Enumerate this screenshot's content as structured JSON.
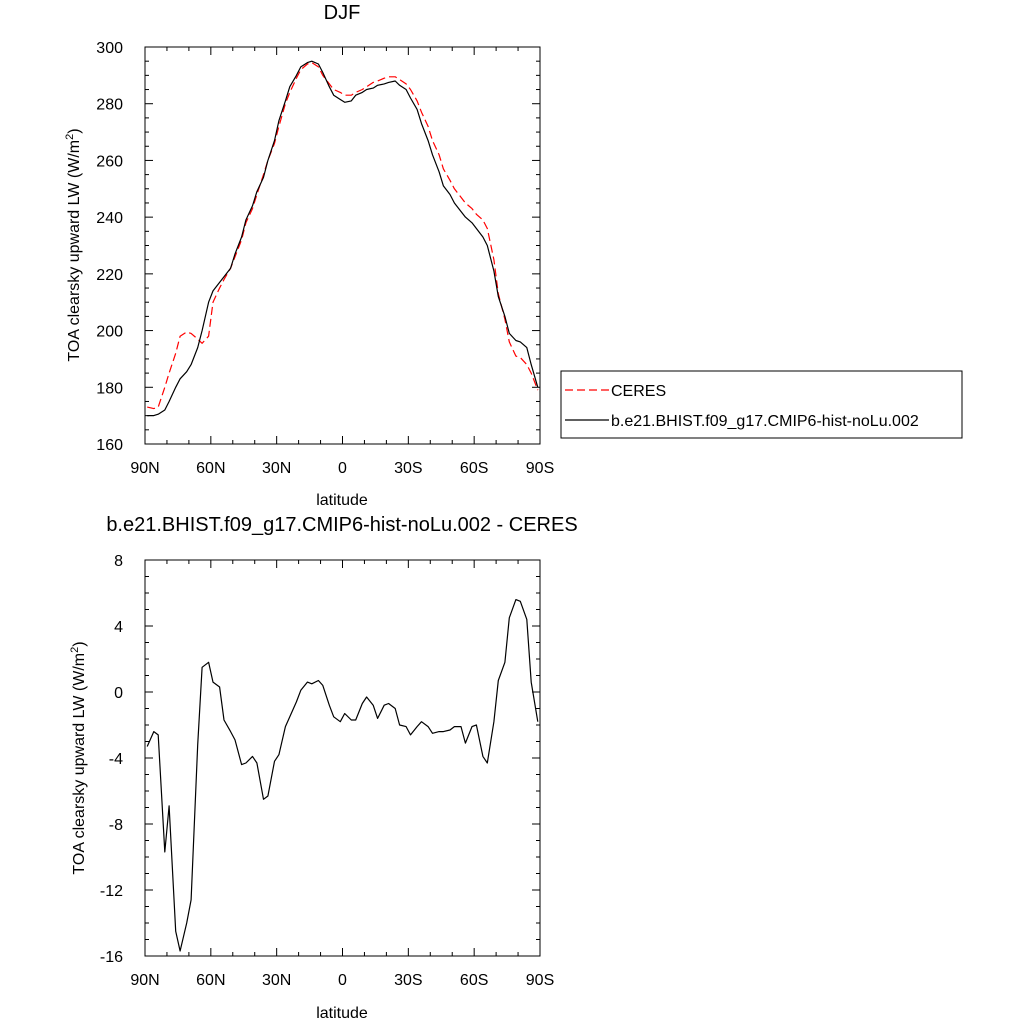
{
  "chart_data": [
    {
      "type": "line",
      "title": "DJF",
      "xlabel": "latitude",
      "ylabel_prefix": "TOA clearsky upward LW (W/m",
      "ylabel_sup": "2",
      "ylabel_suffix": ")",
      "xlim": [
        -90,
        90
      ],
      "ylim": [
        160,
        300
      ],
      "xticks": [
        -90,
        -60,
        -30,
        0,
        30,
        60,
        90
      ],
      "xtick_labels": [
        "90N",
        "60N",
        "30N",
        "0",
        "30S",
        "60S",
        "90S"
      ],
      "yticks": [
        160,
        180,
        200,
        220,
        240,
        260,
        280,
        300
      ],
      "ytick_labels": [
        "160",
        "180",
        "200",
        "220",
        "240",
        "260",
        "280",
        "300"
      ],
      "legend_position": "right",
      "series": [
        {
          "name": "CERES",
          "color": "#ff0000",
          "dash": "dashed",
          "x": [
            -89,
            -86,
            -84,
            -81,
            -79,
            -76,
            -74,
            -71,
            -69,
            -66,
            -64,
            -61,
            -59,
            -56,
            -54,
            -51,
            -49,
            -46,
            -44,
            -41,
            -39,
            -36,
            -34,
            -31,
            -29,
            -26,
            -24,
            -21,
            -19,
            -16,
            -14,
            -11,
            -9,
            -6,
            -4,
            -1,
            1,
            4,
            6,
            9,
            11,
            14,
            16,
            19,
            21,
            24,
            26,
            29,
            31,
            34,
            36,
            39,
            41,
            44,
            46,
            49,
            51,
            54,
            56,
            59,
            61,
            64,
            66,
            69,
            71,
            74,
            76,
            79,
            81,
            84,
            86,
            89
          ],
          "y": [
            173,
            172.5,
            173,
            180,
            185,
            192,
            198,
            199.5,
            199,
            197,
            195.5,
            198,
            210,
            215,
            218,
            222,
            226,
            232,
            238,
            243,
            248,
            255,
            260,
            266,
            272,
            280,
            284,
            289,
            292,
            294,
            294.5,
            293,
            290,
            287,
            285,
            284,
            283,
            283,
            284,
            285,
            286,
            287.5,
            288,
            289,
            289.5,
            289.5,
            288.5,
            287,
            285,
            281,
            277,
            272,
            267,
            262,
            257,
            253,
            250,
            247,
            245,
            243,
            241,
            239,
            236,
            225,
            213,
            204,
            196,
            191,
            190.5,
            188,
            185,
            179
          ]
        },
        {
          "name": "b.e21.BHIST.f09_g17.CMIP6-hist-noLu.002",
          "color": "#000000",
          "dash": "solid",
          "x": [
            -89,
            -86,
            -84,
            -81,
            -79,
            -76,
            -74,
            -71,
            -69,
            -66,
            -64,
            -61,
            -59,
            -56,
            -54,
            -51,
            -49,
            -46,
            -44,
            -41,
            -39,
            -36,
            -34,
            -31,
            -29,
            -26,
            -24,
            -21,
            -19,
            -16,
            -14,
            -11,
            -9,
            -6,
            -4,
            -1,
            1,
            4,
            6,
            9,
            11,
            14,
            16,
            19,
            21,
            24,
            26,
            29,
            31,
            34,
            36,
            39,
            41,
            44,
            46,
            49,
            51,
            54,
            56,
            59,
            61,
            64,
            66,
            69,
            71,
            74,
            76,
            79,
            81,
            84,
            86,
            89
          ],
          "y": [
            170,
            170,
            170.5,
            172,
            175,
            180,
            183,
            185.5,
            188,
            194,
            200,
            210,
            214,
            217,
            219,
            222,
            227,
            233,
            239,
            244,
            249,
            254,
            260,
            267,
            274,
            281,
            286,
            290,
            293,
            294.5,
            295,
            294,
            291,
            286,
            283,
            281.5,
            280.5,
            281,
            283,
            284,
            285,
            285.5,
            286.5,
            287,
            287.5,
            288,
            286.5,
            285,
            282,
            278,
            273,
            267,
            262,
            256,
            251,
            248,
            245,
            242,
            240,
            238,
            236,
            233,
            230,
            221,
            212,
            205,
            199,
            196.5,
            196,
            194,
            188,
            180
          ]
        }
      ]
    },
    {
      "type": "line",
      "title": "b.e21.BHIST.f09_g17.CMIP6-hist-noLu.002 - CERES",
      "xlabel": "latitude",
      "ylabel_prefix": "TOA clearsky upward LW (W/m",
      "ylabel_sup": "2",
      "ylabel_suffix": ")",
      "xlim": [
        -90,
        90
      ],
      "ylim": [
        -16,
        8
      ],
      "xticks": [
        -90,
        -60,
        -30,
        0,
        30,
        60,
        90
      ],
      "xtick_labels": [
        "90N",
        "60N",
        "30N",
        "0",
        "30S",
        "60S",
        "90S"
      ],
      "yticks": [
        -16,
        -12,
        -8,
        -4,
        0,
        4,
        8
      ],
      "ytick_labels": [
        "-16",
        "-12",
        "-8",
        "-4",
        "0",
        "4",
        "8"
      ],
      "series": [
        {
          "color": "#000000",
          "dash": "solid",
          "x": [
            -89,
            -86,
            -84,
            -81,
            -79,
            -76,
            -74,
            -71,
            -69,
            -66,
            -64,
            -61,
            -59,
            -56,
            -54,
            -51,
            -49,
            -46,
            -44,
            -41,
            -39,
            -36,
            -34,
            -31,
            -29,
            -26,
            -24,
            -21,
            -19,
            -16,
            -14,
            -11,
            -9,
            -6,
            -4,
            -1,
            1,
            4,
            6,
            9,
            11,
            14,
            16,
            19,
            21,
            24,
            26,
            29,
            31,
            34,
            36,
            39,
            41,
            44,
            46,
            49,
            51,
            54,
            56,
            59,
            61,
            64,
            66,
            69,
            71,
            74,
            76,
            79,
            81,
            84,
            86,
            89
          ],
          "y": [
            -3.3,
            -2.4,
            -2.6,
            -9.7,
            -6.9,
            -14.5,
            -15.7,
            -14,
            -12.6,
            -3.2,
            1.5,
            1.8,
            0.6,
            0.3,
            -1.7,
            -2.4,
            -2.9,
            -4.4,
            -4.3,
            -3.9,
            -4.3,
            -6.5,
            -6.3,
            -4.2,
            -3.8,
            -2.1,
            -1.5,
            -0.6,
            0.1,
            0.6,
            0.5,
            0.7,
            0.4,
            -0.8,
            -1.5,
            -1.8,
            -1.3,
            -1.7,
            -1.7,
            -0.7,
            -0.3,
            -0.8,
            -1.6,
            -0.8,
            -0.7,
            -1,
            -2,
            -2.1,
            -2.6,
            -2.1,
            -1.8,
            -2.1,
            -2.5,
            -2.4,
            -2.4,
            -2.3,
            -2.1,
            -2.1,
            -3.1,
            -2.1,
            -2,
            -3.9,
            -4.3,
            -1.8,
            0.7,
            1.8,
            4.5,
            5.6,
            5.5,
            4.4,
            0.6,
            -1.8
          ]
        }
      ]
    }
  ]
}
